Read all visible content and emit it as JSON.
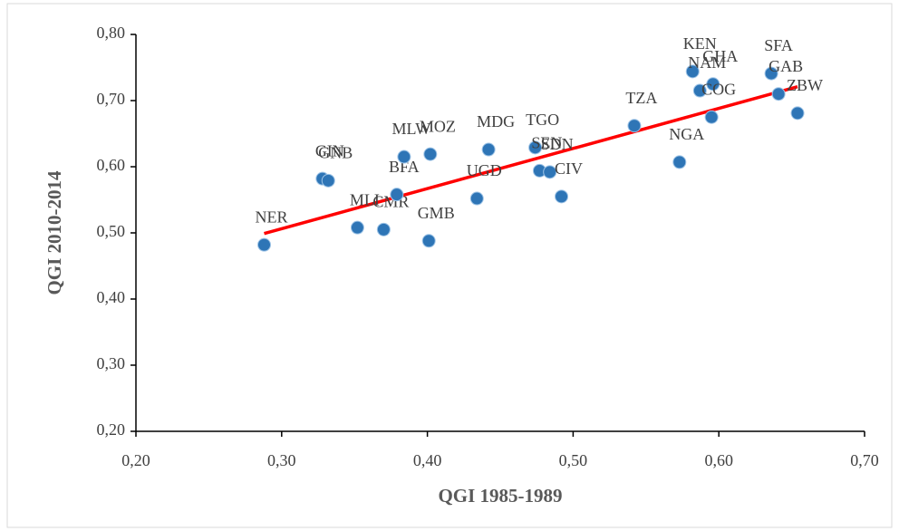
{
  "chart_data": {
    "type": "scatter",
    "x_label": "QGI 1985-1989",
    "y_label": "QGI 2010-2014",
    "point_labels": [
      "NER",
      "GIN",
      "GNB",
      "MLI",
      "CMR",
      "BFA",
      "MLW",
      "MOZ",
      "GMB",
      "UGD",
      "MDG",
      "TGO",
      "SEN",
      "SDN",
      "CIV",
      "TZA",
      "NGA",
      "KEN",
      "NAM",
      "GHA",
      "COG",
      "SFA",
      "GAB",
      "ZBW"
    ],
    "x": [
      0.288,
      0.328,
      0.332,
      0.352,
      0.37,
      0.379,
      0.384,
      0.402,
      0.401,
      0.434,
      0.442,
      0.474,
      0.477,
      0.484,
      0.492,
      0.542,
      0.573,
      0.582,
      0.587,
      0.596,
      0.595,
      0.636,
      0.641,
      0.654
    ],
    "values": [
      0.482,
      0.582,
      0.579,
      0.508,
      0.505,
      0.558,
      0.615,
      0.619,
      0.488,
      0.552,
      0.626,
      0.629,
      0.594,
      0.592,
      0.555,
      0.662,
      0.607,
      0.744,
      0.715,
      0.725,
      0.675,
      0.741,
      0.71,
      0.681
    ],
    "color": "#2e75b6",
    "trendline": {
      "x": [
        0.288,
        0.654
      ],
      "values": [
        0.499,
        0.721
      ],
      "color": "#ff0000"
    },
    "xlim": [
      0.2,
      0.7
    ],
    "xticks": [
      {
        "value": 0.2,
        "label": "0,20"
      },
      {
        "value": 0.3,
        "label": "0,30"
      },
      {
        "value": 0.4,
        "label": "0,40"
      },
      {
        "value": 0.5,
        "label": "0,50"
      },
      {
        "value": 0.6,
        "label": "0,60"
      },
      {
        "value": 0.7,
        "label": "0,70"
      }
    ],
    "ylim": [
      0.2,
      0.8
    ],
    "yticks": [
      {
        "value": 0.2,
        "label": "0,20"
      },
      {
        "value": 0.3,
        "label": "0,30"
      },
      {
        "value": 0.4,
        "label": "0,40"
      },
      {
        "value": 0.5,
        "label": "0,50"
      },
      {
        "value": 0.6,
        "label": "0,60"
      },
      {
        "value": 0.7,
        "label": "0,70"
      },
      {
        "value": 0.8,
        "label": "0,80"
      }
    ]
  }
}
